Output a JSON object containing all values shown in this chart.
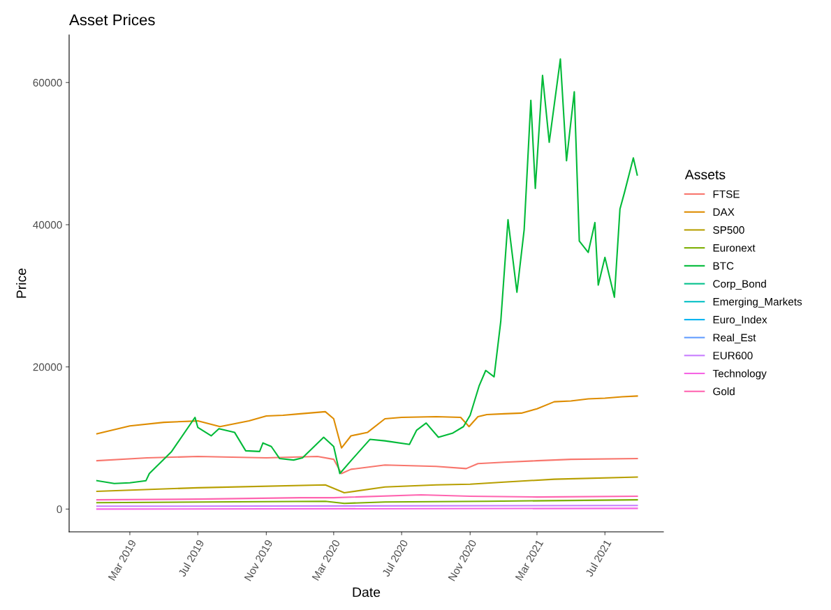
{
  "chart_data": {
    "type": "line",
    "title": "Asset Prices",
    "xlabel": "Date",
    "ylabel": "Price",
    "legend_title": "Assets",
    "legend": "right",
    "grid": false,
    "marker": "none",
    "line_style": "solid",
    "xlim": [
      "2018-11-12",
      "2021-10-14"
    ],
    "ylim": [
      -3200,
      66700
    ],
    "xticks": [
      {
        "value": "2019-03-01",
        "label": "Mar 2019"
      },
      {
        "value": "2019-07-01",
        "label": "Jul 2019"
      },
      {
        "value": "2019-11-01",
        "label": "Nov 2019"
      },
      {
        "value": "2020-03-01",
        "label": "Mar 2020"
      },
      {
        "value": "2020-07-01",
        "label": "Jul 2020"
      },
      {
        "value": "2020-11-01",
        "label": "Nov 2020"
      },
      {
        "value": "2021-03-01",
        "label": "Mar 2021"
      },
      {
        "value": "2021-07-01",
        "label": "Jul 2021"
      }
    ],
    "yticks": [
      0,
      20000,
      40000,
      60000
    ],
    "series": [
      {
        "name": "FTSE",
        "color": "#f8766d",
        "x": [
          "2019-01-01",
          "2019-04-01",
          "2019-07-01",
          "2019-11-01",
          "2020-02-01",
          "2020-03-01",
          "2020-03-15",
          "2020-04-01",
          "2020-06-01",
          "2020-09-01",
          "2020-10-25",
          "2020-11-15",
          "2021-01-01",
          "2021-03-01",
          "2021-05-01",
          "2021-08-28"
        ],
        "values": [
          6800,
          7200,
          7400,
          7200,
          7400,
          7000,
          5000,
          5600,
          6200,
          6000,
          5700,
          6400,
          6600,
          6800,
          7000,
          7100
        ]
      },
      {
        "name": "DAX",
        "color": "#de8c00",
        "x": [
          "2019-01-01",
          "2019-03-01",
          "2019-05-01",
          "2019-07-01",
          "2019-08-10",
          "2019-10-01",
          "2019-11-01",
          "2019-12-01",
          "2020-01-01",
          "2020-02-15",
          "2020-03-01",
          "2020-03-15",
          "2020-04-01",
          "2020-05-01",
          "2020-06-01",
          "2020-07-01",
          "2020-09-01",
          "2020-10-15",
          "2020-10-30",
          "2020-11-15",
          "2020-12-01",
          "2021-01-01",
          "2021-02-01",
          "2021-03-01",
          "2021-04-01",
          "2021-05-01",
          "2021-06-01",
          "2021-07-01",
          "2021-08-01",
          "2021-08-28"
        ],
        "values": [
          10600,
          11700,
          12200,
          12400,
          11600,
          12400,
          13100,
          13200,
          13400,
          13700,
          12700,
          8600,
          10300,
          10800,
          12700,
          12900,
          13000,
          12900,
          11600,
          13000,
          13300,
          13400,
          13500,
          14100,
          15100,
          15200,
          15500,
          15600,
          15800,
          15900
        ]
      },
      {
        "name": "SP500",
        "color": "#b79f00",
        "x": [
          "2019-01-01",
          "2019-07-01",
          "2020-02-15",
          "2020-03-20",
          "2020-06-01",
          "2020-09-01",
          "2020-11-01",
          "2021-01-01",
          "2021-04-01",
          "2021-08-28"
        ],
        "values": [
          2500,
          3000,
          3400,
          2300,
          3100,
          3400,
          3500,
          3800,
          4200,
          4500
        ]
      },
      {
        "name": "Euronext",
        "color": "#7cae00",
        "x": [
          "2019-01-01",
          "2020-02-15",
          "2020-03-20",
          "2020-06-01",
          "2020-12-01",
          "2021-08-28"
        ],
        "values": [
          900,
          1100,
          800,
          1000,
          1100,
          1300
        ]
      },
      {
        "name": "BTC",
        "color": "#00ba38",
        "x": [
          "2019-01-01",
          "2019-02-01",
          "2019-03-01",
          "2019-03-30",
          "2019-04-05",
          "2019-05-15",
          "2019-06-26",
          "2019-07-01",
          "2019-07-25",
          "2019-08-08",
          "2019-09-05",
          "2019-09-25",
          "2019-10-20",
          "2019-10-26",
          "2019-11-10",
          "2019-11-25",
          "2019-12-20",
          "2020-01-05",
          "2020-02-12",
          "2020-03-01",
          "2020-03-12",
          "2020-04-01",
          "2020-05-05",
          "2020-06-01",
          "2020-07-15",
          "2020-07-28",
          "2020-08-14",
          "2020-09-05",
          "2020-10-01",
          "2020-10-20",
          "2020-11-01",
          "2020-11-17",
          "2020-11-29",
          "2020-12-14",
          "2020-12-26",
          "2021-01-08",
          "2021-01-24",
          "2021-02-06",
          "2021-02-18",
          "2021-02-26",
          "2021-03-11",
          "2021-03-23",
          "2021-04-12",
          "2021-04-23",
          "2021-05-07",
          "2021-05-16",
          "2021-06-01",
          "2021-06-13",
          "2021-06-19",
          "2021-07-01",
          "2021-07-18",
          "2021-07-28",
          "2021-08-05",
          "2021-08-21",
          "2021-08-28"
        ],
        "values": [
          4000,
          3600,
          3700,
          4000,
          5000,
          8100,
          12900,
          11500,
          10300,
          11300,
          10800,
          8200,
          8100,
          9300,
          8800,
          7100,
          6900,
          7200,
          10100,
          8800,
          5000,
          6800,
          9800,
          9600,
          9100,
          11100,
          12100,
          10100,
          10700,
          11600,
          13200,
          17300,
          19500,
          18600,
          26400,
          40700,
          30500,
          39300,
          57500,
          45100,
          61000,
          51600,
          63300,
          49000,
          58700,
          37700,
          36100,
          40300,
          31500,
          35400,
          29800,
          42200,
          44500,
          49400,
          47000
        ]
      },
      {
        "name": "Corp_Bond",
        "color": "#00c08b"
      },
      {
        "name": "Emerging_Markets",
        "color": "#00bfc4"
      },
      {
        "name": "Euro_Index",
        "color": "#00b4f0"
      },
      {
        "name": "Real_Est",
        "color": "#619cff"
      },
      {
        "name": "EUR600",
        "color": "#c77cff",
        "x": [
          "2019-01-01",
          "2021-08-28"
        ],
        "values": [
          400,
          500
        ]
      },
      {
        "name": "Technology",
        "color": "#f564e3",
        "x": [
          "2019-01-01",
          "2021-08-28"
        ],
        "values": [
          0,
          100
        ]
      },
      {
        "name": "Gold",
        "color": "#ff64b0",
        "x": [
          "2019-01-01",
          "2019-07-01",
          "2020-01-01",
          "2020-03-01",
          "2020-08-05",
          "2020-11-01",
          "2021-03-01",
          "2021-08-28"
        ],
        "values": [
          1300,
          1400,
          1600,
          1600,
          2000,
          1800,
          1700,
          1800
        ]
      }
    ]
  }
}
